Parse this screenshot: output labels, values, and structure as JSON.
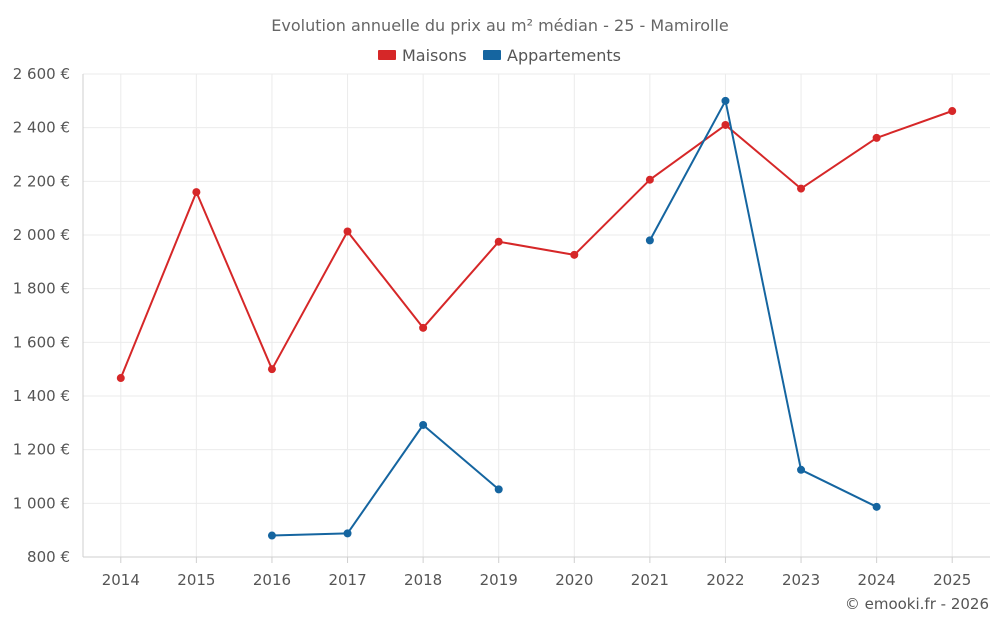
{
  "chart_data": {
    "type": "line",
    "title": "Evolution annuelle du prix au m² médian - 25 - Mamirolle",
    "xlabel": "",
    "ylabel": "",
    "categories": [
      "2014",
      "2015",
      "2016",
      "2017",
      "2018",
      "2019",
      "2020",
      "2021",
      "2022",
      "2023",
      "2024",
      "2025"
    ],
    "ylim": [
      800,
      2600
    ],
    "yticks": [
      800,
      1000,
      1200,
      1400,
      1600,
      1800,
      2000,
      2200,
      2400,
      2600
    ],
    "ytick_labels": [
      "800 €",
      "1 000 €",
      "1 200 €",
      "1 400 €",
      "1 600 €",
      "1 800 €",
      "2 000 €",
      "2 200 €",
      "2 400 €",
      "2 600 €"
    ],
    "grid": true,
    "legend_position": "top-center",
    "series": [
      {
        "name": "Maisons",
        "color": "#d62728",
        "values": [
          1467,
          2160,
          1500,
          2013,
          1654,
          1975,
          1926,
          2206,
          2410,
          2173,
          2362,
          2462
        ]
      },
      {
        "name": "Appartements",
        "color": "#1565a0",
        "values": [
          null,
          null,
          880,
          888,
          1292,
          1052,
          null,
          1980,
          2500,
          1125,
          987,
          null
        ]
      }
    ],
    "credit": "© emooki.fr - 2026"
  }
}
